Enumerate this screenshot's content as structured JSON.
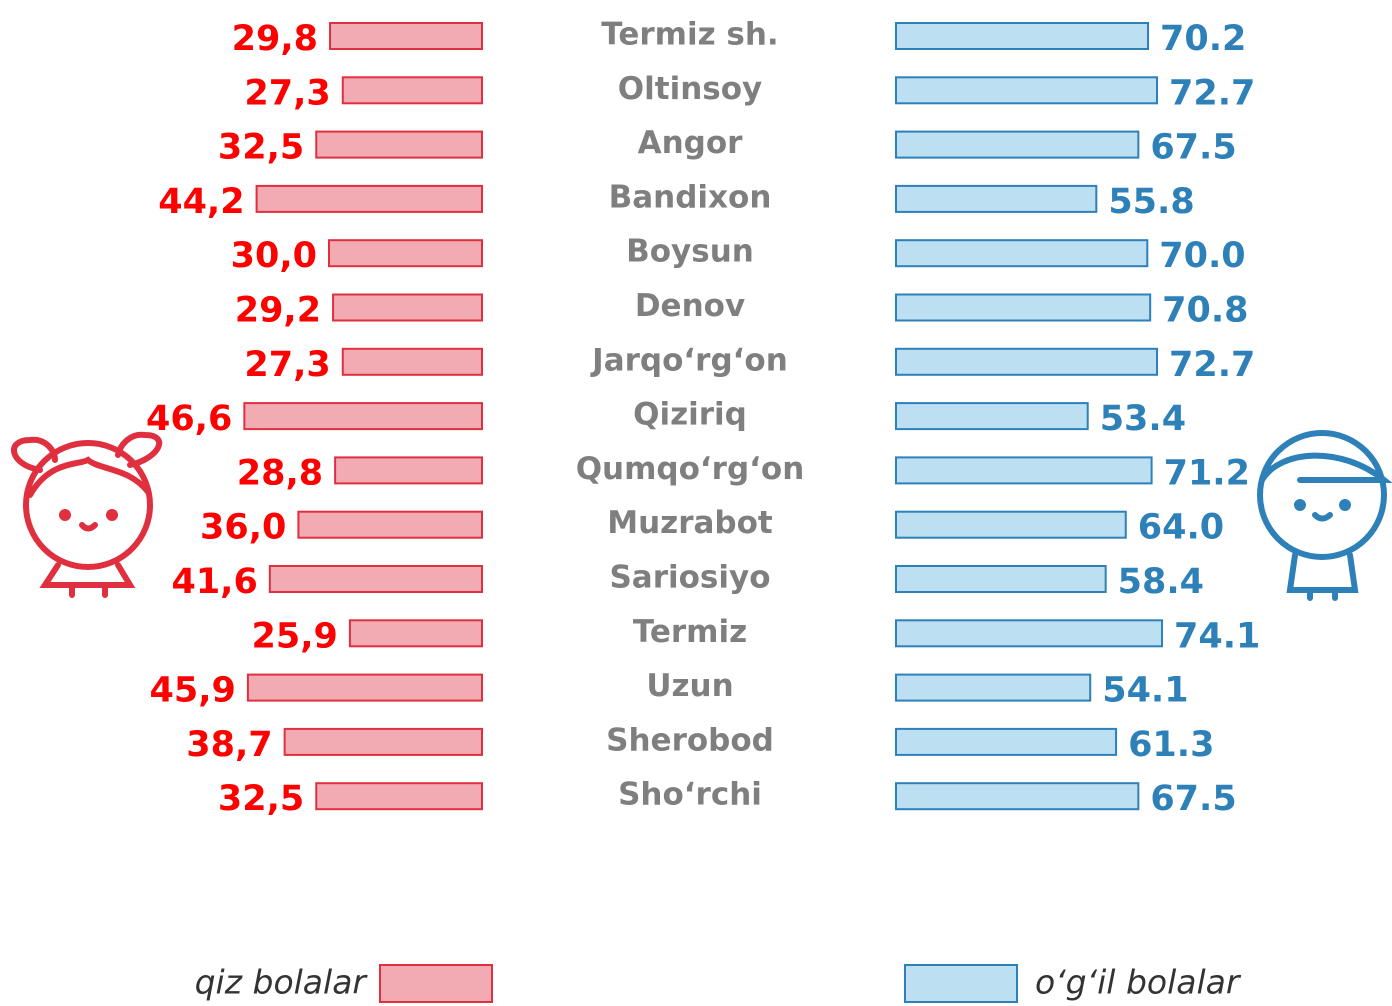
{
  "chart_data": {
    "type": "butterfly",
    "categories": [
      "Termiz sh.",
      "Oltinsoy",
      "Angor",
      "Bandixon",
      "Boysun",
      "Denov",
      "Jarqo‘rg‘on",
      "Qiziriq",
      "Qumqo‘rg‘on",
      "Muzrabot",
      "Sariosiyo",
      "Termiz",
      "Uzun",
      "Sherobod",
      "Sho‘rchi"
    ],
    "series": [
      {
        "name": "qiz bolalar",
        "color": "#f2aab3",
        "values": [
          29.8,
          27.3,
          32.5,
          44.2,
          30.0,
          29.2,
          27.3,
          46.6,
          28.8,
          36.0,
          41.6,
          25.9,
          45.9,
          38.7,
          32.5
        ],
        "value_labels": [
          "29,8",
          "27,3",
          "32,5",
          "44,2",
          "30,0",
          "29,2",
          "27,3",
          "46,6",
          "28,8",
          "36,0",
          "41,6",
          "25,9",
          "45,9",
          "38,7",
          "32,5"
        ]
      },
      {
        "name": "o‘g‘il bolalar",
        "color": "#bddff2",
        "values": [
          70.2,
          72.7,
          67.5,
          55.8,
          70.0,
          70.8,
          72.7,
          53.4,
          71.2,
          64.0,
          58.4,
          74.1,
          54.1,
          61.3,
          67.5
        ],
        "value_labels": [
          "70.2",
          "72.7",
          "67.5",
          "55.8",
          "70.0",
          "70.8",
          "72.7",
          "53.4",
          "71.2",
          "64.0",
          "58.4",
          "74.1",
          "54.1",
          "61.3",
          "67.5"
        ]
      }
    ]
  }
}
